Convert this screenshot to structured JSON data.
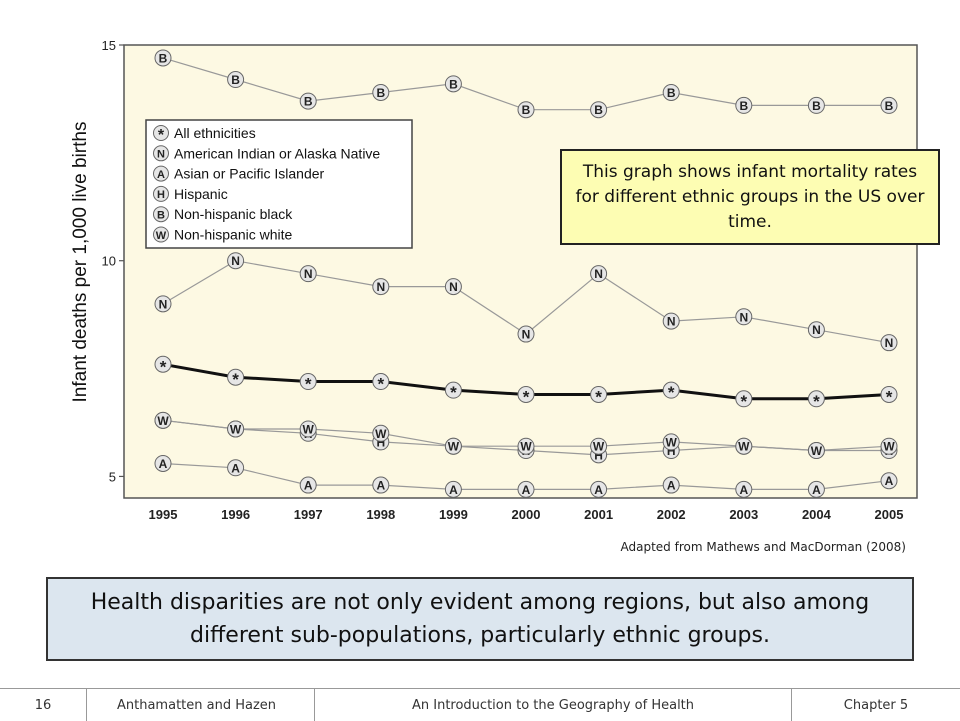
{
  "chart_data": {
    "type": "line",
    "title": "",
    "xlabel": "",
    "ylabel": "Infant deaths per 1,000 live births",
    "x": [
      1995,
      1996,
      1997,
      1998,
      1999,
      2000,
      2001,
      2002,
      2003,
      2004,
      2005
    ],
    "xlim": [
      1994.9,
      2005.4
    ],
    "ylim": [
      4.5,
      15
    ],
    "yticks": [
      5,
      10,
      15
    ],
    "grid": false,
    "legend_position": "top-left",
    "series": [
      {
        "name": "All ethnicities",
        "marker": "*",
        "values": [
          7.6,
          7.3,
          7.2,
          7.2,
          7.0,
          6.9,
          6.9,
          7.0,
          6.8,
          6.8,
          6.9
        ]
      },
      {
        "name": "American Indian or Alaska Native",
        "marker": "N",
        "values": [
          9.0,
          10.0,
          9.7,
          9.4,
          9.4,
          8.3,
          9.7,
          8.6,
          8.7,
          8.4,
          8.1
        ]
      },
      {
        "name": "Asian or Pacific Islander",
        "marker": "A",
        "values": [
          5.3,
          5.2,
          4.8,
          4.8,
          4.7,
          4.7,
          4.7,
          4.8,
          4.7,
          4.7,
          4.9
        ]
      },
      {
        "name": "Hispanic",
        "marker": "H",
        "values": [
          6.3,
          6.1,
          6.0,
          5.8,
          5.7,
          5.6,
          5.5,
          5.6,
          5.7,
          5.6,
          5.6
        ]
      },
      {
        "name": "Non-hispanic black",
        "marker": "B",
        "values": [
          14.7,
          14.2,
          13.7,
          13.9,
          14.1,
          13.5,
          13.5,
          13.9,
          13.6,
          13.6,
          13.6
        ]
      },
      {
        "name": "Non-hispanic white",
        "marker": "W",
        "values": [
          6.3,
          6.1,
          6.1,
          6.0,
          5.7,
          5.7,
          5.7,
          5.8,
          5.7,
          5.6,
          5.7
        ]
      }
    ]
  },
  "colors": {
    "plot_background": "#fdf9e3",
    "series_line": "#999999",
    "all_line": "#111111",
    "marker_fill": "#e6e6e6",
    "callout_background": "#fdfdb3",
    "caption_background": "#dce6ef"
  },
  "callout": {
    "text": "This graph shows infant mortality rates for different ethnic groups in the US over time."
  },
  "source": "Adapted from Mathews and MacDorman (2008)",
  "caption": "Health disparities are not only evident among regions, but also among different sub-populations, particularly ethnic groups.",
  "footer": {
    "page": "16",
    "authors": "Anthamatten and Hazen",
    "book_title": "An Introduction to the Geography of Health",
    "chapter": "Chapter 5"
  }
}
